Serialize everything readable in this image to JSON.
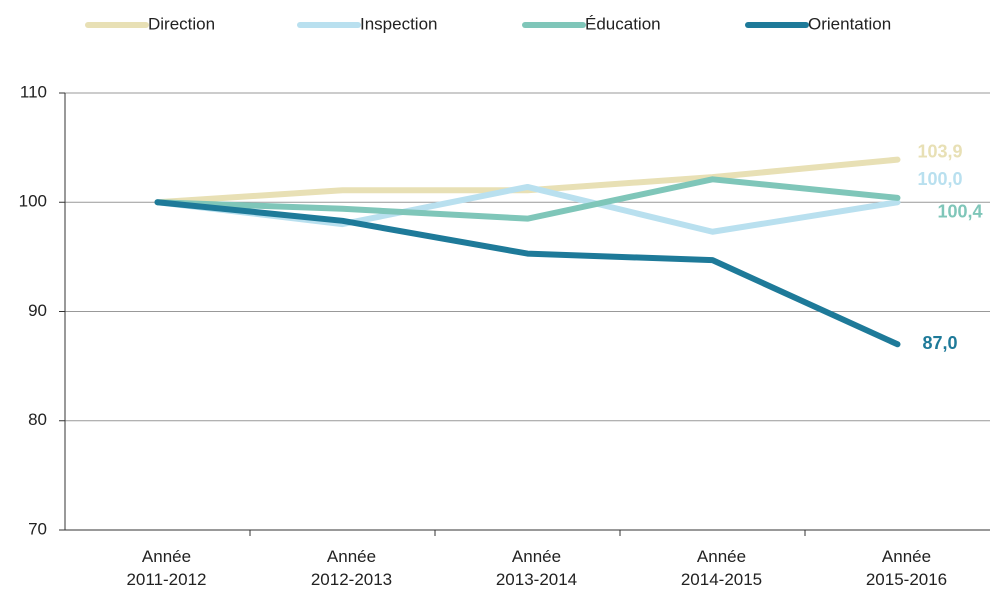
{
  "chart_data": {
    "type": "line",
    "categories": [
      "Année\n2011-2012",
      "Année\n2012-2013",
      "Année\n2013-2014",
      "Année\n2014-2015",
      "Année\n2015-2016"
    ],
    "series": [
      {
        "name": "Direction",
        "color": "#e8e0b5",
        "values": [
          100,
          101.1,
          101.1,
          102.3,
          103.9
        ],
        "value_labels": [
          null,
          null,
          null,
          null,
          "103,9"
        ]
      },
      {
        "name": "Inspection",
        "color": "#b9e0ef",
        "values": [
          100,
          98.0,
          101.4,
          97.3,
          100.0
        ],
        "value_labels": [
          null,
          null,
          null,
          null,
          "100,0"
        ]
      },
      {
        "name": "Éducation",
        "color": "#7fc6b9",
        "values": [
          100,
          99.4,
          98.5,
          102.1,
          100.4
        ],
        "value_labels": [
          null,
          null,
          null,
          null,
          "100,4"
        ]
      },
      {
        "name": "Orientation",
        "color": "#1e7a99",
        "values": [
          100,
          98.3,
          95.3,
          94.7,
          87.0
        ],
        "value_labels": [
          null,
          null,
          null,
          null,
          "87,0"
        ]
      }
    ],
    "ylim": [
      70,
      110
    ],
    "yticks": [
      70,
      80,
      90,
      100,
      110
    ],
    "grid": true,
    "legend": "top"
  }
}
